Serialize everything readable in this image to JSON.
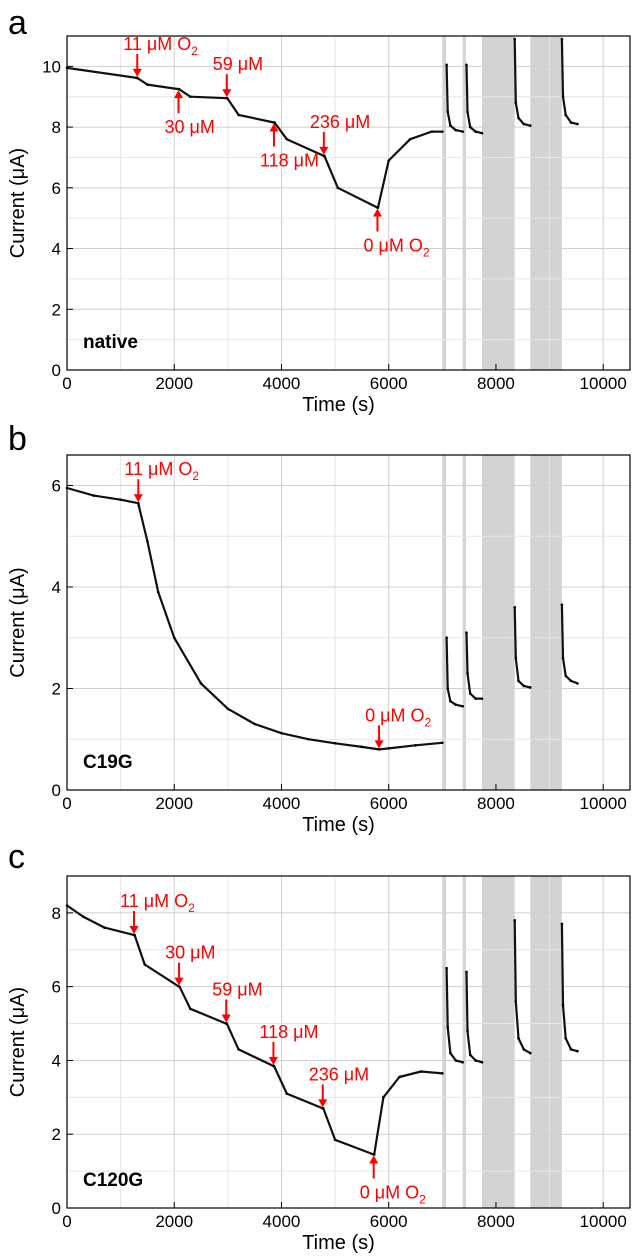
{
  "figure": {
    "panels": [
      {
        "panel_label": "a",
        "sample_label": "native",
        "xlabel": "Time (s)",
        "ylabel": "Current (μA)",
        "xlim": [
          0,
          10500
        ],
        "ylim": [
          0,
          11
        ],
        "xticks": [
          0,
          2000,
          4000,
          6000,
          8000,
          10000
        ],
        "yticks": [
          0,
          2,
          4,
          6,
          8,
          10
        ],
        "annotations": [
          {
            "text": "11 μM O",
            "sub": "2",
            "arrow": "down",
            "x": 1310,
            "y": 9.62
          },
          {
            "text": "30 μM",
            "sub": "",
            "arrow": "up",
            "x": 2080,
            "y": 9.25
          },
          {
            "text": "59 μM",
            "sub": "",
            "arrow": "down",
            "x": 2980,
            "y": 8.95
          },
          {
            "text": "118 μM",
            "sub": "",
            "arrow": "up",
            "x": 3860,
            "y": 8.15
          },
          {
            "text": "236 μM",
            "sub": "",
            "arrow": "down",
            "x": 4790,
            "y": 7.05
          },
          {
            "text": "0 μM O",
            "sub": "2",
            "arrow": "up",
            "x": 5790,
            "y": 5.35
          }
        ]
      },
      {
        "panel_label": "b",
        "sample_label": "C19G",
        "xlabel": "Time (s)",
        "ylabel": "Current (μA)",
        "xlim": [
          0,
          10500
        ],
        "ylim": [
          0,
          6.6
        ],
        "xticks": [
          0,
          2000,
          4000,
          6000,
          8000,
          10000
        ],
        "yticks": [
          0,
          2,
          4,
          6
        ],
        "annotations": [
          {
            "text": "11 μM O",
            "sub": "2",
            "arrow": "down",
            "x": 1330,
            "y": 5.65
          },
          {
            "text": "0 μM O",
            "sub": "2",
            "arrow": "down",
            "x": 5820,
            "y": 0.8
          }
        ]
      },
      {
        "panel_label": "c",
        "sample_label": "C120G",
        "xlabel": "Time (s)",
        "ylabel": "Current (μA)",
        "xlim": [
          0,
          10500
        ],
        "ylim": [
          0,
          9
        ],
        "xticks": [
          0,
          2000,
          4000,
          6000,
          8000,
          10000
        ],
        "yticks": [
          0,
          2,
          4,
          6,
          8
        ],
        "annotations": [
          {
            "text": "11 μM O",
            "sub": "2",
            "arrow": "down",
            "x": 1250,
            "y": 7.4
          },
          {
            "text": "30 μM",
            "sub": "",
            "arrow": "down",
            "x": 2090,
            "y": 6.0
          },
          {
            "text": "59 μM",
            "sub": "",
            "arrow": "down",
            "x": 2970,
            "y": 5.0
          },
          {
            "text": "118 μM",
            "sub": "",
            "arrow": "down",
            "x": 3850,
            "y": 3.85
          },
          {
            "text": "236 μM",
            "sub": "",
            "arrow": "down",
            "x": 4770,
            "y": 2.7
          },
          {
            "text": "0 μM O",
            "sub": "2",
            "arrow": "up",
            "x": 5720,
            "y": 1.45
          }
        ]
      }
    ]
  },
  "chart_data": [
    {
      "type": "scatter",
      "title": "",
      "xlabel": "Time (s)",
      "ylabel": "Current (μA)",
      "xlim": [
        0,
        10500
      ],
      "ylim": [
        0,
        11
      ],
      "grid": true,
      "shaded_x_ranges": [
        [
          7000,
          7070
        ],
        [
          7380,
          7440
        ],
        [
          7740,
          8350
        ],
        [
          8640,
          9230
        ]
      ],
      "series": [
        {
          "x": [
            0,
            1300,
            1310,
            1500,
            2080,
            2090,
            2300,
            2980,
            2990,
            3200,
            3860,
            3870,
            4100,
            4790,
            4800,
            5050,
            5790,
            5800,
            6000,
            6400,
            6800,
            7000
          ],
          "y": [
            9.95,
            9.62,
            9.62,
            9.4,
            9.25,
            9.25,
            9.0,
            8.95,
            8.95,
            8.4,
            8.15,
            8.15,
            7.6,
            7.05,
            7.05,
            6.0,
            5.35,
            5.35,
            6.9,
            7.6,
            7.85,
            7.85
          ]
        },
        {
          "x": [
            7080,
            7100,
            7150,
            7250,
            7380
          ],
          "y": [
            10.05,
            8.5,
            8.05,
            7.9,
            7.85
          ]
        },
        {
          "x": [
            7450,
            7470,
            7520,
            7620,
            7740
          ],
          "y": [
            10.05,
            8.5,
            8.0,
            7.85,
            7.8
          ]
        },
        {
          "x": [
            8350,
            8370,
            8420,
            8520,
            8640
          ],
          "y": [
            10.9,
            8.8,
            8.3,
            8.1,
            8.05
          ]
        },
        {
          "x": [
            9230,
            9250,
            9300,
            9400,
            9520
          ],
          "y": [
            10.9,
            9.0,
            8.4,
            8.15,
            8.1
          ]
        }
      ]
    },
    {
      "type": "scatter",
      "title": "",
      "xlabel": "Time (s)",
      "ylabel": "Current (μA)",
      "xlim": [
        0,
        10500
      ],
      "ylim": [
        0,
        6.6
      ],
      "grid": true,
      "shaded_x_ranges": [
        [
          7000,
          7070
        ],
        [
          7380,
          7440
        ],
        [
          7740,
          8350
        ],
        [
          8640,
          9230
        ]
      ],
      "series": [
        {
          "x": [
            0,
            500,
            1000,
            1330,
            1340,
            1500,
            1700,
            2000,
            2500,
            3000,
            3500,
            4000,
            4500,
            5000,
            5500,
            5820,
            6000,
            6500,
            7000
          ],
          "y": [
            5.95,
            5.8,
            5.72,
            5.65,
            5.6,
            4.9,
            3.9,
            3.0,
            2.1,
            1.6,
            1.3,
            1.12,
            1.0,
            0.92,
            0.85,
            0.8,
            0.82,
            0.88,
            0.93
          ]
        },
        {
          "x": [
            7080,
            7100,
            7150,
            7250,
            7380
          ],
          "y": [
            3.0,
            2.0,
            1.75,
            1.68,
            1.65
          ]
        },
        {
          "x": [
            7450,
            7470,
            7520,
            7620,
            7740
          ],
          "y": [
            3.1,
            2.3,
            1.9,
            1.8,
            1.8
          ]
        },
        {
          "x": [
            8350,
            8370,
            8420,
            8520,
            8640
          ],
          "y": [
            3.6,
            2.6,
            2.15,
            2.05,
            2.02
          ]
        },
        {
          "x": [
            9230,
            9250,
            9300,
            9400,
            9520
          ],
          "y": [
            3.65,
            2.6,
            2.25,
            2.15,
            2.1
          ]
        }
      ]
    },
    {
      "type": "scatter",
      "title": "",
      "xlabel": "Time (s)",
      "ylabel": "Current (μA)",
      "xlim": [
        0,
        10500
      ],
      "ylim": [
        0,
        9
      ],
      "grid": true,
      "shaded_x_ranges": [
        [
          7000,
          7070
        ],
        [
          7380,
          7440
        ],
        [
          7740,
          8350
        ],
        [
          8640,
          9230
        ]
      ],
      "series": [
        {
          "x": [
            0,
            300,
            700,
            1250,
            1260,
            1450,
            2090,
            2100,
            2300,
            2970,
            2980,
            3200,
            3850,
            3860,
            4100,
            4770,
            4780,
            5000,
            5720,
            5730,
            5900,
            6200,
            6600,
            7000
          ],
          "y": [
            8.2,
            7.9,
            7.6,
            7.4,
            7.4,
            6.6,
            6.0,
            6.0,
            5.4,
            5.0,
            5.0,
            4.3,
            3.85,
            3.85,
            3.1,
            2.7,
            2.7,
            1.85,
            1.45,
            1.45,
            3.0,
            3.55,
            3.7,
            3.65
          ]
        },
        {
          "x": [
            7080,
            7100,
            7150,
            7250,
            7380
          ],
          "y": [
            6.5,
            4.9,
            4.2,
            4.0,
            3.95
          ]
        },
        {
          "x": [
            7450,
            7470,
            7520,
            7620,
            7740
          ],
          "y": [
            6.4,
            4.8,
            4.15,
            4.0,
            3.95
          ]
        },
        {
          "x": [
            8350,
            8370,
            8420,
            8520,
            8640
          ],
          "y": [
            7.8,
            5.6,
            4.6,
            4.3,
            4.2
          ]
        },
        {
          "x": [
            9230,
            9250,
            9300,
            9400,
            9520
          ],
          "y": [
            7.7,
            5.5,
            4.6,
            4.3,
            4.25
          ]
        }
      ]
    }
  ]
}
